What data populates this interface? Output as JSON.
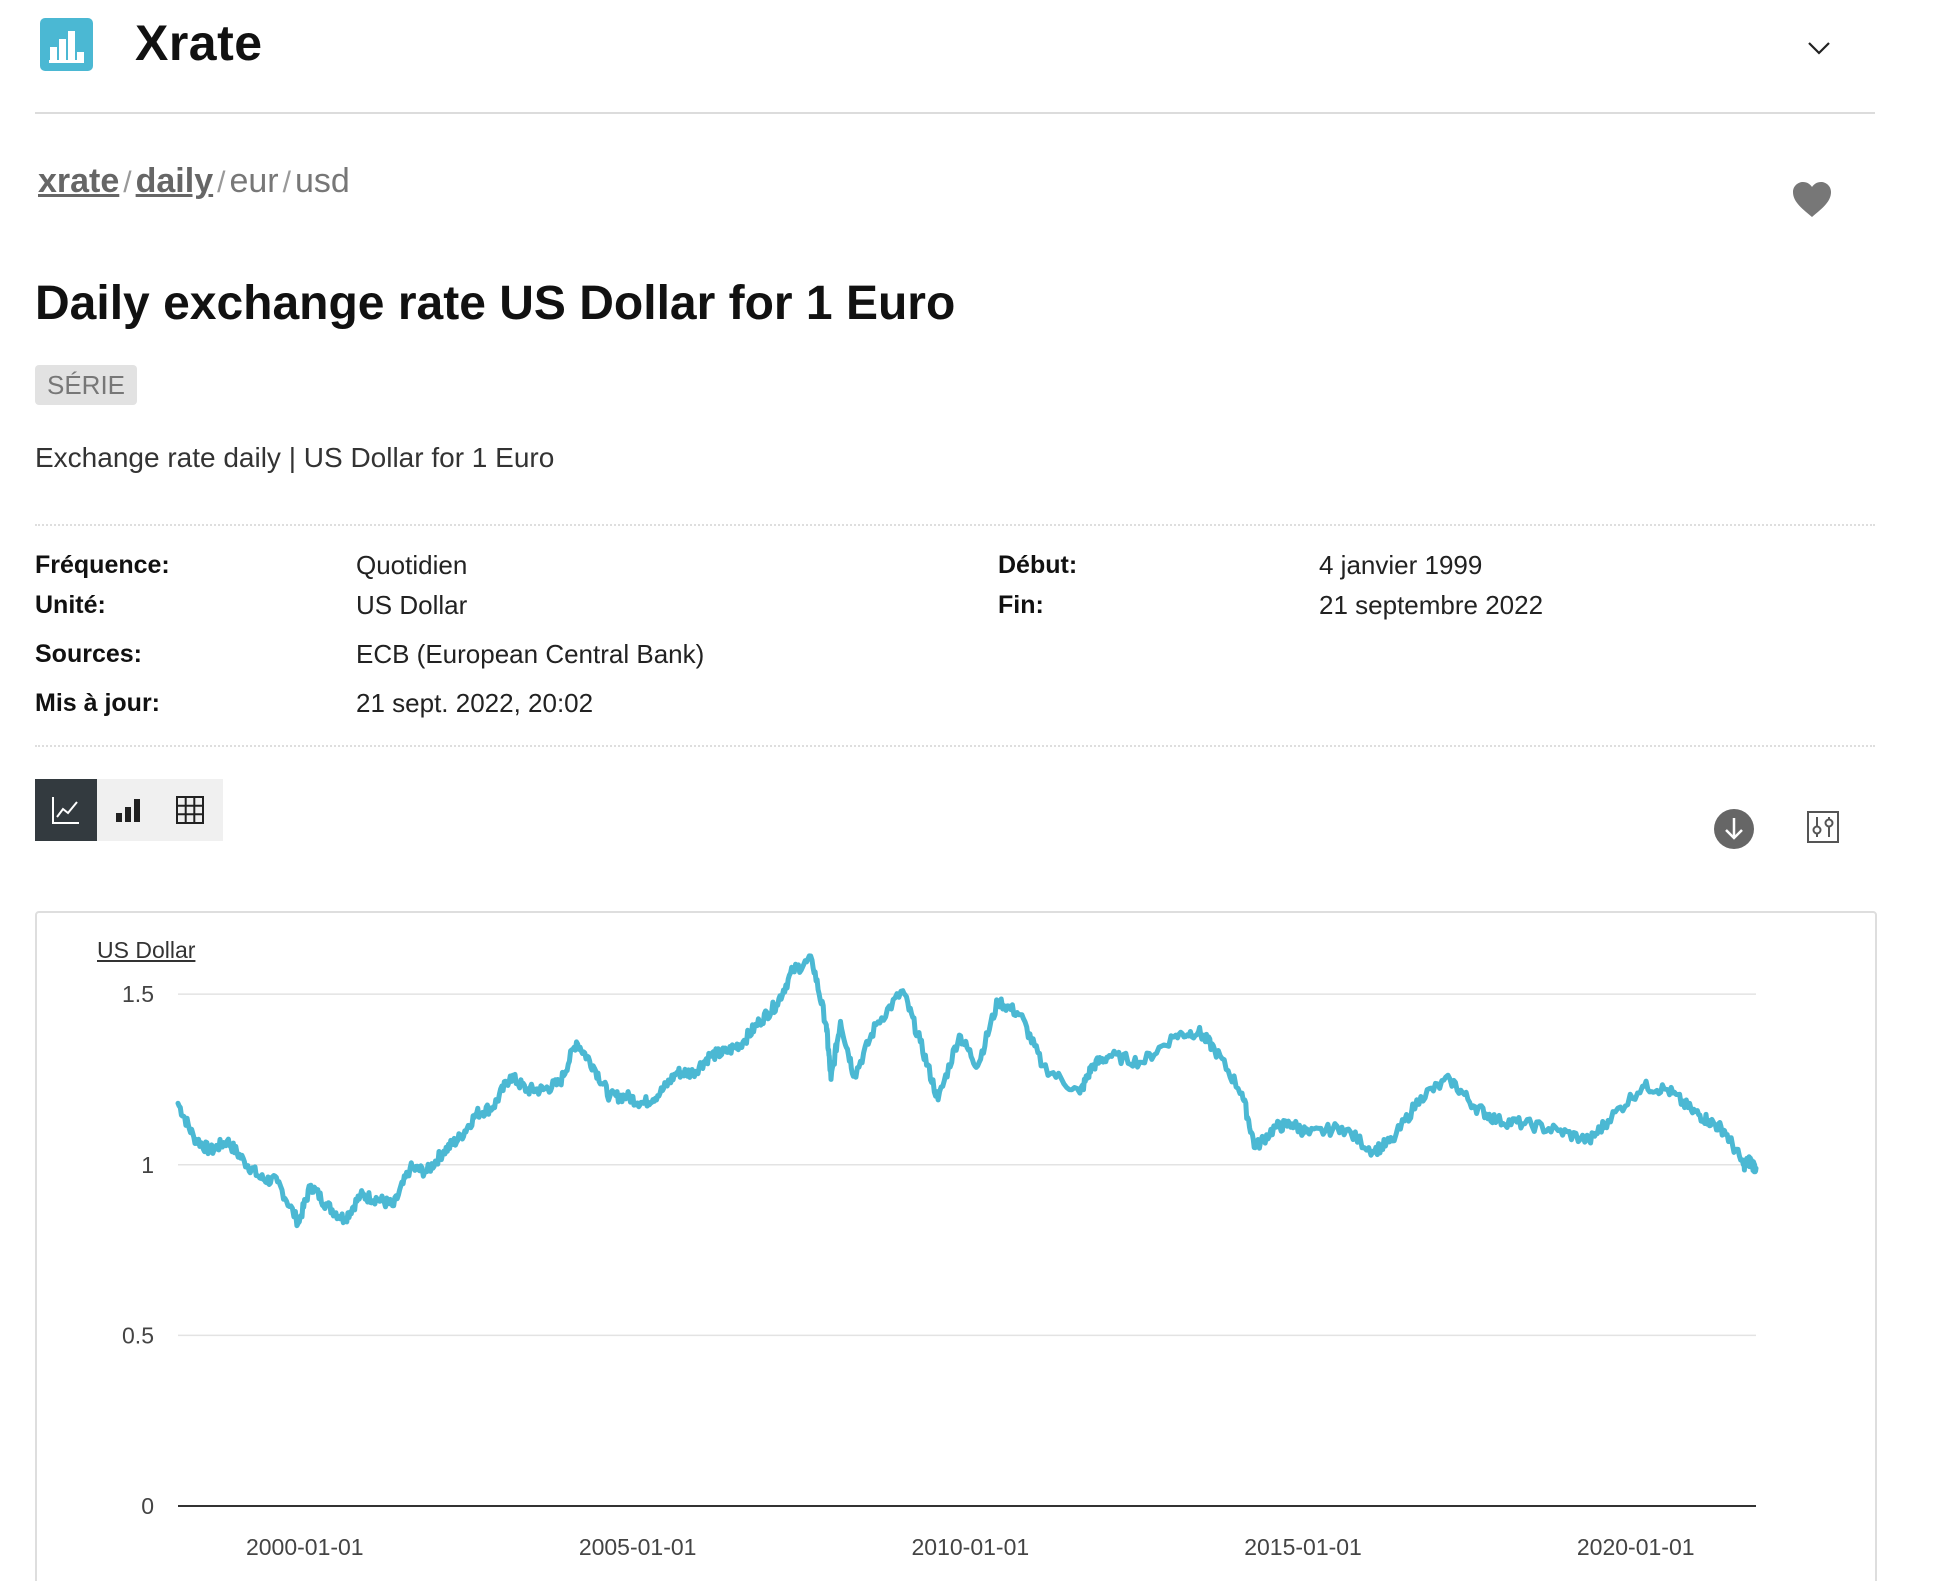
{
  "app": {
    "title": "Xrate",
    "logo_icon": "bar-chart-logo-icon",
    "accent_color": "#4bb8d3"
  },
  "breadcrumb": {
    "items": [
      "xrate",
      "daily",
      "eur",
      "usd"
    ],
    "separator": "/"
  },
  "page": {
    "title": "Daily exchange rate US Dollar for 1 Euro",
    "badge": "SÉRIE",
    "subtitle": "Exchange rate daily | US Dollar for 1 Euro"
  },
  "meta": {
    "frequency_label": "Fréquence:",
    "frequency_value": "Quotidien",
    "unit_label": "Unité:",
    "unit_value": "US Dollar",
    "sources_label": "Sources:",
    "sources_value": "ECB (European Central Bank)",
    "updated_label": "Mis à jour:",
    "updated_value": "21 sept. 2022, 20:02",
    "start_label": "Début:",
    "start_value": "4 janvier 1999",
    "end_label": "Fin:",
    "end_value": "21 septembre 2022"
  },
  "toolbar": {
    "views": [
      "line-chart-icon",
      "bar-chart-icon",
      "table-icon"
    ],
    "active_view": "line-chart-icon",
    "download_icon": "download-icon",
    "settings_icon": "sliders-icon"
  },
  "chart_data": {
    "type": "line",
    "ylabel": "US Dollar",
    "ylim": [
      0,
      1.6
    ],
    "xlim": [
      "1999-01-04",
      "2022-09-21"
    ],
    "yticks": [
      "0",
      "0.5",
      "1",
      "1.5"
    ],
    "xticks": [
      "2000-01-01",
      "2005-01-01",
      "2010-01-01",
      "2015-01-01",
      "2020-01-01"
    ],
    "grid": true,
    "line_color": "#4bb8d3",
    "series": [
      {
        "x": [
          "1999-01-04",
          "1999-04-01",
          "1999-07-01",
          "1999-10-01",
          "2000-01-03",
          "2000-04-03",
          "2000-07-03",
          "2000-10-26",
          "2001-01-02",
          "2001-04-02",
          "2001-07-06",
          "2001-10-01",
          "2002-01-02",
          "2002-04-02",
          "2002-07-01",
          "2002-10-01",
          "2003-01-02",
          "2003-04-01",
          "2003-07-01",
          "2003-10-01",
          "2004-01-02",
          "2004-04-01",
          "2004-07-01",
          "2004-10-01",
          "2004-12-30",
          "2005-04-01",
          "2005-07-01",
          "2005-10-03",
          "2006-01-02",
          "2006-04-03",
          "2006-07-03",
          "2006-10-02",
          "2007-01-02",
          "2007-04-02",
          "2007-07-02",
          "2007-10-01",
          "2008-01-02",
          "2008-04-01",
          "2008-07-15",
          "2008-10-01",
          "2008-10-27",
          "2008-12-18",
          "2009-03-04",
          "2009-07-01",
          "2009-11-25",
          "2010-03-01",
          "2010-06-07",
          "2010-10-01",
          "2011-01-10",
          "2011-05-02",
          "2011-09-01",
          "2012-01-02",
          "2012-07-24",
          "2012-10-01",
          "2013-01-02",
          "2013-07-01",
          "2014-01-02",
          "2014-05-06",
          "2014-08-01",
          "2014-12-31",
          "2015-03-13",
          "2015-07-01",
          "2015-10-01",
          "2016-01-04",
          "2016-07-01",
          "2016-12-20",
          "2017-04-03",
          "2017-09-08",
          "2018-02-15",
          "2018-07-02",
          "2018-11-01",
          "2019-04-01",
          "2019-10-01",
          "2020-03-20",
          "2020-07-01",
          "2021-01-06",
          "2021-05-25",
          "2021-10-01",
          "2022-01-03",
          "2022-04-01",
          "2022-07-14",
          "2022-08-19",
          "2022-09-21"
        ],
        "values": [
          1.18,
          1.08,
          1.04,
          1.07,
          1.01,
          0.96,
          0.95,
          0.83,
          0.94,
          0.88,
          0.84,
          0.91,
          0.9,
          0.88,
          0.99,
          0.98,
          1.04,
          1.08,
          1.15,
          1.17,
          1.26,
          1.22,
          1.22,
          1.24,
          1.36,
          1.29,
          1.2,
          1.2,
          1.18,
          1.21,
          1.27,
          1.27,
          1.32,
          1.33,
          1.36,
          1.42,
          1.47,
          1.57,
          1.6,
          1.41,
          1.25,
          1.42,
          1.26,
          1.41,
          1.51,
          1.36,
          1.19,
          1.38,
          1.29,
          1.48,
          1.44,
          1.29,
          1.21,
          1.29,
          1.32,
          1.3,
          1.38,
          1.39,
          1.34,
          1.21,
          1.05,
          1.11,
          1.12,
          1.09,
          1.11,
          1.04,
          1.07,
          1.2,
          1.25,
          1.17,
          1.13,
          1.12,
          1.1,
          1.07,
          1.13,
          1.23,
          1.22,
          1.16,
          1.13,
          1.1,
          1.0,
          1.01,
          0.99
        ]
      }
    ]
  }
}
